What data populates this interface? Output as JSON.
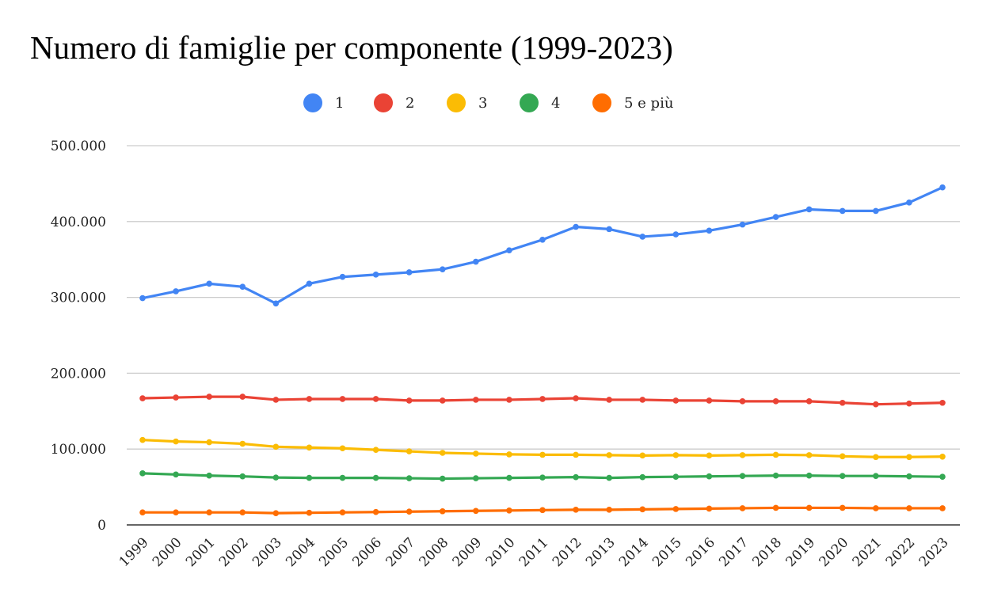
{
  "chart_data": {
    "type": "line",
    "title": "Numero di famiglie per componente (1999-2023)",
    "xlabel": "",
    "ylabel": "",
    "ylim": [
      0,
      500000
    ],
    "y_ticks": [
      0,
      100000,
      200000,
      300000,
      400000,
      500000
    ],
    "y_tick_labels": [
      "0",
      "100.000",
      "200.000",
      "300.000",
      "400.000",
      "500.000"
    ],
    "grid": true,
    "legend_position": "top-center",
    "x": [
      "1999",
      "2000",
      "2001",
      "2002",
      "2003",
      "2004",
      "2005",
      "2006",
      "2007",
      "2008",
      "2009",
      "2010",
      "2011",
      "2012",
      "2013",
      "2014",
      "2015",
      "2016",
      "2017",
      "2018",
      "2019",
      "2020",
      "2021",
      "2022",
      "2023"
    ],
    "series": [
      {
        "name": "1",
        "color": "#4285f4",
        "values": [
          299000,
          308000,
          318000,
          314000,
          292000,
          318000,
          327000,
          330000,
          333000,
          337000,
          347000,
          362000,
          376000,
          393000,
          390000,
          380000,
          383000,
          388000,
          396000,
          406000,
          416000,
          414000,
          414000,
          425000,
          445000
        ]
      },
      {
        "name": "2",
        "color": "#ea4335",
        "values": [
          167000,
          168000,
          169000,
          169000,
          165000,
          166000,
          166000,
          166000,
          164000,
          164000,
          165000,
          165000,
          166000,
          167000,
          165000,
          165000,
          164000,
          164000,
          163000,
          163000,
          163000,
          161000,
          159000,
          160000,
          161000
        ]
      },
      {
        "name": "3",
        "color": "#fbbc04",
        "values": [
          112000,
          110000,
          109000,
          107000,
          103000,
          102000,
          101000,
          99000,
          97000,
          95000,
          94000,
          93000,
          92500,
          92500,
          92000,
          91500,
          92000,
          91500,
          92000,
          92500,
          92000,
          90500,
          89500,
          89500,
          90000
        ]
      },
      {
        "name": "4",
        "color": "#34a853",
        "values": [
          68000,
          66500,
          65000,
          64000,
          62500,
          62000,
          62000,
          62000,
          61500,
          61000,
          61500,
          62000,
          62500,
          63000,
          62000,
          63000,
          63500,
          64000,
          64500,
          65000,
          65000,
          64500,
          64500,
          64000,
          63500
        ]
      },
      {
        "name": "5 e più",
        "color": "#ff6d01",
        "values": [
          16500,
          16500,
          16500,
          16500,
          15500,
          16000,
          16500,
          17000,
          17500,
          18000,
          18500,
          19000,
          19500,
          20000,
          20000,
          20500,
          21000,
          21500,
          22000,
          22500,
          22500,
          22500,
          22000,
          22000,
          22000
        ]
      }
    ]
  },
  "style": {
    "grid_color": "#cccccc",
    "axis_color": "#333333"
  }
}
